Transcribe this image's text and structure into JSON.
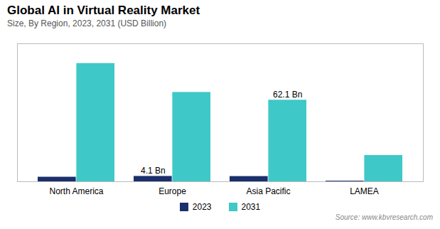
{
  "chart_data": {
    "type": "bar",
    "title": "Global AI in Virtual Reality Market",
    "subtitle": "Size, By Region, 2023, 2031 (USD Billion)",
    "source": "Source: www.kbvresearch.com",
    "categories": [
      "North America",
      "Europe",
      "Asia Pacific",
      "LAMEA"
    ],
    "series": [
      {
        "name": "2023",
        "color": "#1a2f6b",
        "values": [
          3.5,
          4.1,
          4.0,
          0.5
        ]
      },
      {
        "name": "2031",
        "color": "#3ec8c8",
        "values": [
          90.0,
          68.0,
          62.1,
          20.0
        ]
      }
    ],
    "annotations": [
      {
        "category": "Europe",
        "series": "2023",
        "label": "4.1 Bn"
      },
      {
        "category": "Asia Pacific",
        "series": "2031",
        "label": "62.1 Bn"
      }
    ],
    "ylim": [
      0,
      105
    ],
    "grid": false,
    "legend": "bottom",
    "tick_labels": "x"
  }
}
